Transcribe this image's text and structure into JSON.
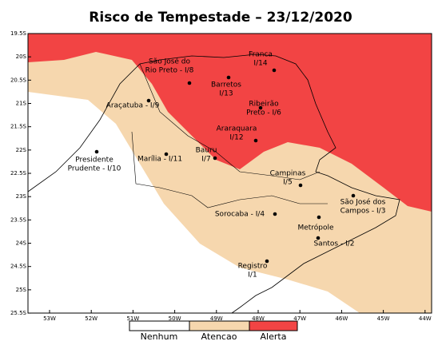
{
  "title": "Risco de Tempestade – 23/12/2020",
  "map": {
    "lat_labels": [
      "19.5S",
      "20S",
      "20.5S",
      "21S",
      "21.5S",
      "22S",
      "22.5S",
      "23S",
      "23.5S",
      "24S",
      "24.5S",
      "25S",
      "25.5S"
    ],
    "lon_labels": [
      "53W",
      "52W",
      "51W",
      "50W",
      "49W",
      "48W",
      "47W",
      "46W",
      "45W",
      "44W"
    ]
  },
  "cities": [
    {
      "lines": [
        "São José do",
        "Rio Preto - I/8"
      ]
    },
    {
      "lines": [
        "Franca",
        "I/14"
      ]
    },
    {
      "lines": [
        "Barretos",
        "I/13"
      ]
    },
    {
      "lines": [
        "Ribeirão",
        "Preto - I/6"
      ]
    },
    {
      "lines": [
        "Araçatuba - I/9"
      ]
    },
    {
      "lines": [
        "Araraquara",
        "I/12"
      ]
    },
    {
      "lines": [
        "Bauru",
        "I/7"
      ]
    },
    {
      "lines": [
        "Presidente",
        "Prudente - I/10"
      ]
    },
    {
      "lines": [
        "Marília - I/11"
      ]
    },
    {
      "lines": [
        "Campinas",
        "I/5"
      ]
    },
    {
      "lines": [
        "São José dos",
        "Campos - I/3"
      ]
    },
    {
      "lines": [
        "Sorocaba - I/4"
      ]
    },
    {
      "lines": [
        "Metrópole"
      ]
    },
    {
      "lines": [
        "Santos - I/2"
      ]
    },
    {
      "lines": [
        "Registro",
        "I/1"
      ]
    }
  ],
  "legend": [
    "Nenhum",
    "Atencao",
    "Alerta"
  ]
}
